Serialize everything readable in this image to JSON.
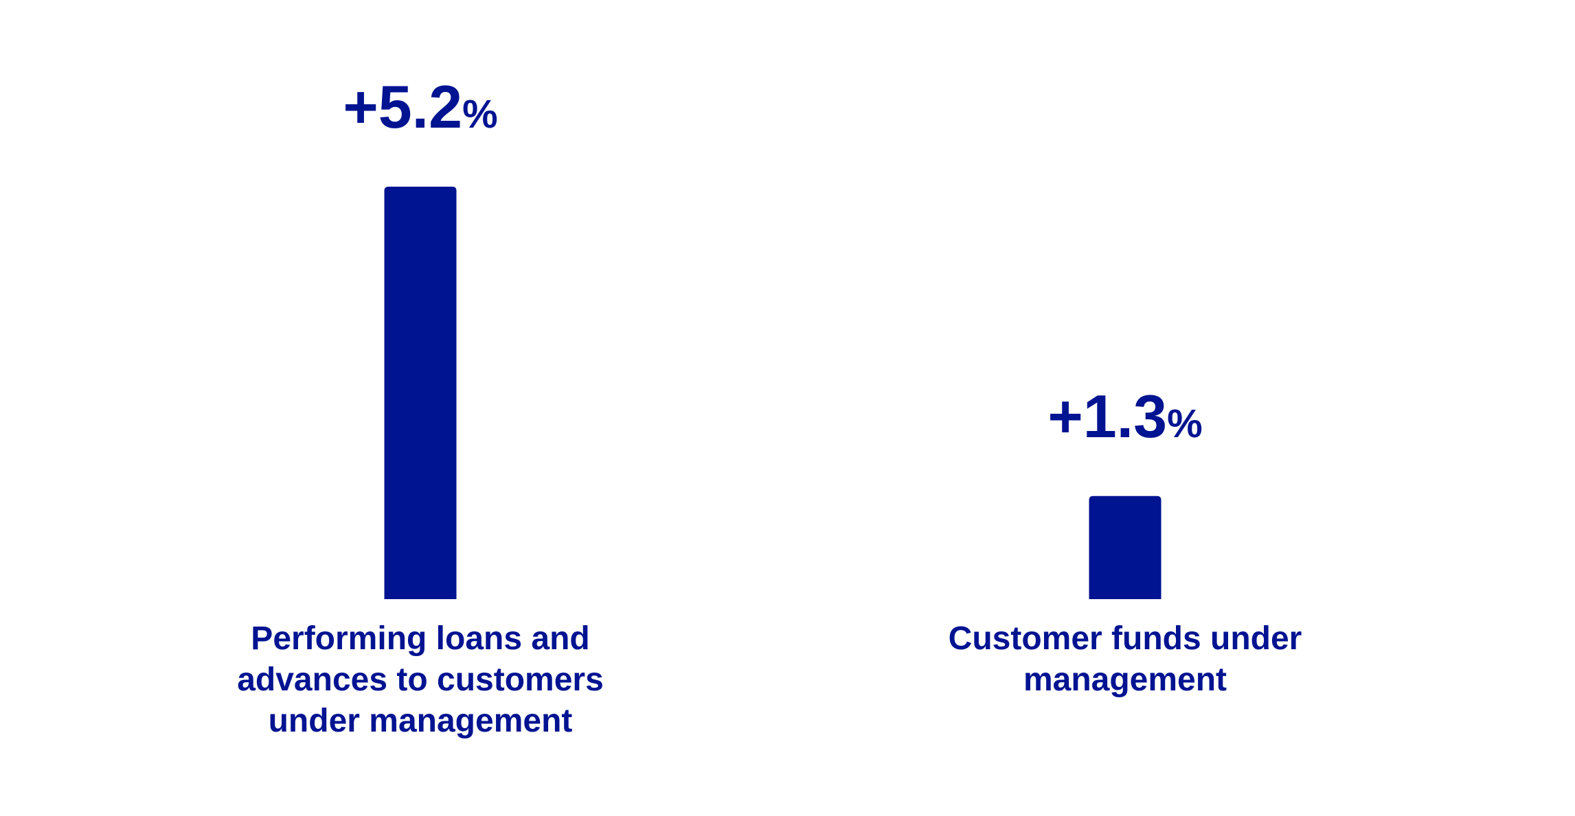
{
  "chart_data": {
    "type": "bar",
    "categories": [
      "Performing loans and\nadvances to customers\nunder management",
      "Customer funds under\nmanagement"
    ],
    "values": [
      5.2,
      1.3
    ],
    "data_labels": [
      {
        "number": "+5.2",
        "unit": "%"
      },
      {
        "number": "+1.3",
        "unit": "%"
      }
    ],
    "title": "",
    "xlabel": "",
    "ylabel": "",
    "ylim": [
      0,
      5.2
    ],
    "grid": false,
    "legend": "none",
    "color": "#001391"
  }
}
